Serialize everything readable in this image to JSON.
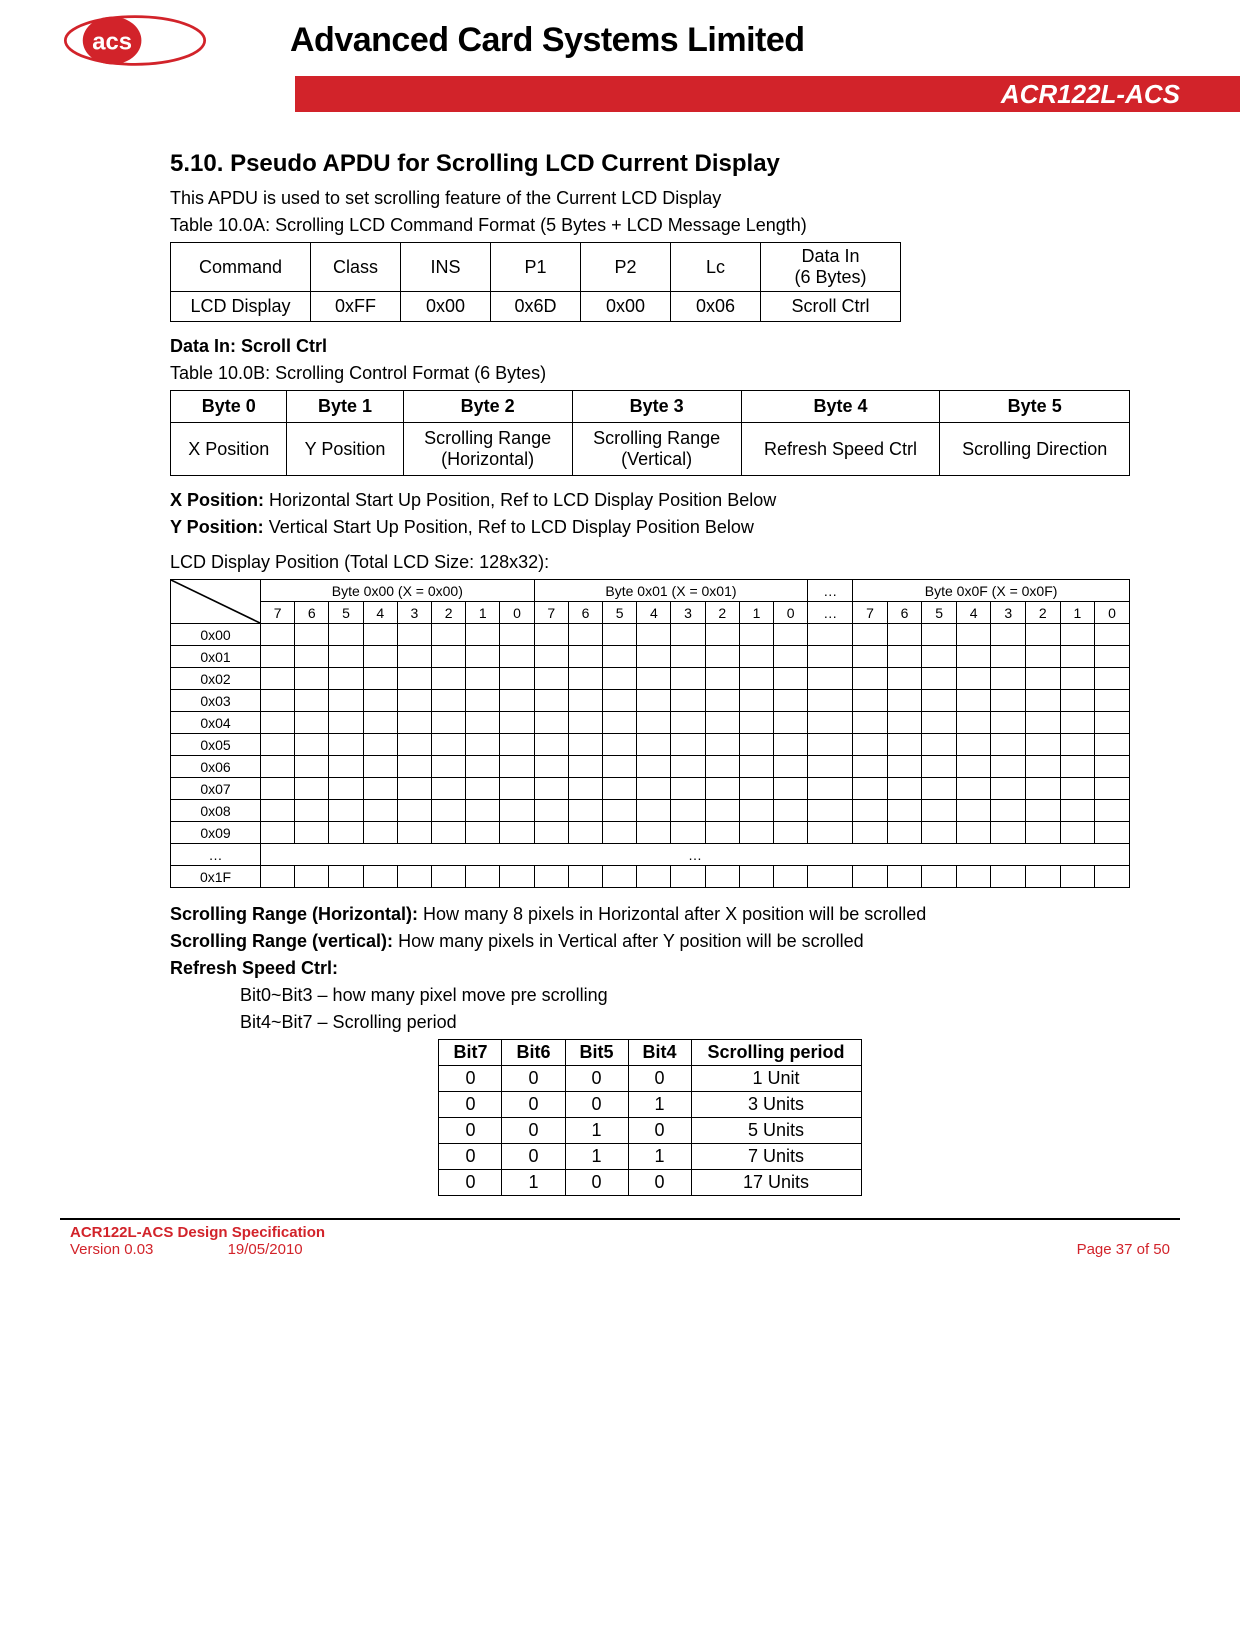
{
  "header": {
    "company": "Advanced Card Systems Limited",
    "product": "ACR122L-ACS",
    "logo_text": "acs",
    "logo_color": "#d2232a"
  },
  "section": {
    "number": "5.10.",
    "title": "Pseudo APDU for Scrolling LCD Current Display",
    "intro": "This APDU is used to set scrolling feature of the Current LCD Display"
  },
  "table_cmd": {
    "caption": "Table 10.0A: Scrolling LCD Command Format (5 Bytes + LCD Message Length)",
    "headers": [
      "Command",
      "Class",
      "INS",
      "P1",
      "P2",
      "Lc",
      "Data In"
    ],
    "sub_header_last": "(6 Bytes)",
    "row": [
      "LCD Display",
      "0xFF",
      "0x00",
      "0x6D",
      "0x00",
      "0x06",
      "Scroll Ctrl"
    ]
  },
  "data_in_label": "Data In: Scroll Ctrl",
  "table_bytes": {
    "caption": "Table 10.0B: Scrolling Control Format (6 Bytes)",
    "headers": [
      "Byte 0",
      "Byte 1",
      "Byte 2",
      "Byte 3",
      "Byte 4",
      "Byte 5"
    ],
    "row": [
      "X Position",
      "Y Position",
      "Scrolling Range (Horizontal)",
      "Scrolling Range (Vertical)",
      "Refresh Speed Ctrl",
      "Scrolling Direction"
    ]
  },
  "xpos_label": "X Position:",
  "xpos_text": " Horizontal Start Up Position, Ref to LCD Display Position Below",
  "ypos_label": "Y Position:",
  "ypos_text": " Vertical Start Up Position, Ref to LCD Display Position Below",
  "lcd_pos_caption": "LCD Display Position (Total LCD Size: 128x32):",
  "lcd_pos": {
    "byte_groups": [
      "Byte 0x00 (X = 0x00)",
      "Byte 0x01 (X = 0x01)",
      "…",
      "Byte 0x0F (X = 0x0F)"
    ],
    "bits": [
      "7",
      "6",
      "5",
      "4",
      "3",
      "2",
      "1",
      "0"
    ],
    "row_labels": [
      "0x00",
      "0x01",
      "0x02",
      "0x03",
      "0x04",
      "0x05",
      "0x06",
      "0x07",
      "0x08",
      "0x09",
      "…",
      "0x1F"
    ]
  },
  "scroll_h_label": "Scrolling Range (Horizontal):",
  "scroll_h_text": " How many 8 pixels in Horizontal after X position will be scrolled",
  "scroll_v_label": "Scrolling Range (vertical):",
  "scroll_v_text": " How many pixels in Vertical after Y position will be scrolled",
  "refresh_label": "Refresh Speed Ctrl:",
  "refresh_bit03": "Bit0~Bit3 – how many pixel move pre scrolling",
  "refresh_bit47": "Bit4~Bit7 – Scrolling period",
  "table_bits": {
    "headers": [
      "Bit7",
      "Bit6",
      "Bit5",
      "Bit4",
      "Scrolling period"
    ],
    "rows": [
      [
        "0",
        "0",
        "0",
        "0",
        "1 Unit"
      ],
      [
        "0",
        "0",
        "0",
        "1",
        "3 Units"
      ],
      [
        "0",
        "0",
        "1",
        "0",
        "5 Units"
      ],
      [
        "0",
        "0",
        "1",
        "1",
        "7 Units"
      ],
      [
        "0",
        "1",
        "0",
        "0",
        "17 Units"
      ]
    ]
  },
  "footer": {
    "doc": "ACR122L-ACS Design Specification",
    "version": "Version 0.03",
    "date": "19/05/2010",
    "page": "Page 37 of 50"
  }
}
